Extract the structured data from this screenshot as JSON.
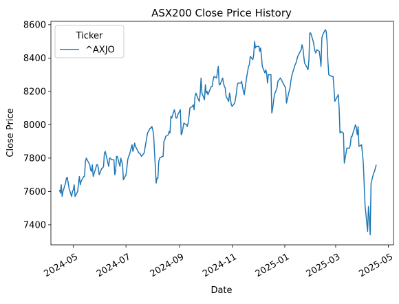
{
  "chart_data": {
    "type": "line",
    "title": "ASX200 Close Price History",
    "xlabel": "Date",
    "ylabel": "Close Price",
    "grid": false,
    "legend": {
      "title": "Ticker",
      "placement": "top-left",
      "entries": [
        "^AXJO"
      ]
    },
    "xlim": [
      "2024-04-05",
      "2025-05-07"
    ],
    "ylim": [
      7280,
      8620
    ],
    "x_ticks": [
      "2024-05-01",
      "2024-07-01",
      "2024-09-01",
      "2024-11-01",
      "2025-01-01",
      "2025-03-01",
      "2025-05-01"
    ],
    "x_tick_labels": [
      "2024-05",
      "2024-07",
      "2024-09",
      "2024-11",
      "2025-01",
      "2025-03",
      "2025-05"
    ],
    "y_ticks": [
      7400,
      7600,
      7800,
      8000,
      8200,
      8400,
      8600
    ],
    "y_tick_labels": [
      "7400",
      "7600",
      "7800",
      "8000",
      "8200",
      "8400",
      "8600"
    ],
    "series": [
      {
        "name": "^AXJO",
        "color": "#1f77b4",
        "x": [
          "2024-04-15",
          "2024-04-16",
          "2024-04-17",
          "2024-04-18",
          "2024-04-19",
          "2024-04-22",
          "2024-04-23",
          "2024-04-24",
          "2024-04-26",
          "2024-04-29",
          "2024-04-30",
          "2024-05-01",
          "2024-05-02",
          "2024-05-03",
          "2024-05-06",
          "2024-05-07",
          "2024-05-08",
          "2024-05-09",
          "2024-05-10",
          "2024-05-13",
          "2024-05-14",
          "2024-05-15",
          "2024-05-16",
          "2024-05-17",
          "2024-05-20",
          "2024-05-21",
          "2024-05-22",
          "2024-05-23",
          "2024-05-24",
          "2024-05-27",
          "2024-05-28",
          "2024-05-29",
          "2024-05-30",
          "2024-05-31",
          "2024-06-03",
          "2024-06-04",
          "2024-06-05",
          "2024-06-06",
          "2024-06-07",
          "2024-06-11",
          "2024-06-12",
          "2024-06-13",
          "2024-06-14",
          "2024-06-17",
          "2024-06-18",
          "2024-06-19",
          "2024-06-20",
          "2024-06-21",
          "2024-06-24",
          "2024-06-25",
          "2024-06-26",
          "2024-06-27",
          "2024-06-28",
          "2024-07-01",
          "2024-07-02",
          "2024-07-03",
          "2024-07-04",
          "2024-07-05",
          "2024-07-08",
          "2024-07-09",
          "2024-07-10",
          "2024-07-11",
          "2024-07-12",
          "2024-07-15",
          "2024-07-16",
          "2024-07-17",
          "2024-07-18",
          "2024-07-19",
          "2024-07-22",
          "2024-07-23",
          "2024-07-24",
          "2024-07-25",
          "2024-07-26",
          "2024-07-29",
          "2024-07-30",
          "2024-07-31",
          "2024-08-01",
          "2024-08-02",
          "2024-08-05",
          "2024-08-06",
          "2024-08-07",
          "2024-08-08",
          "2024-08-09",
          "2024-08-12",
          "2024-08-13",
          "2024-08-14",
          "2024-08-15",
          "2024-08-16",
          "2024-08-19",
          "2024-08-20",
          "2024-08-21",
          "2024-08-22",
          "2024-08-23",
          "2024-08-26",
          "2024-08-27",
          "2024-08-28",
          "2024-08-29",
          "2024-08-30",
          "2024-09-02",
          "2024-09-03",
          "2024-09-04",
          "2024-09-05",
          "2024-09-06",
          "2024-09-09",
          "2024-09-10",
          "2024-09-11",
          "2024-09-12",
          "2024-09-13",
          "2024-09-16",
          "2024-09-17",
          "2024-09-18",
          "2024-09-19",
          "2024-09-20",
          "2024-09-23",
          "2024-09-24",
          "2024-09-25",
          "2024-09-26",
          "2024-09-27",
          "2024-09-30",
          "2024-10-01",
          "2024-10-02",
          "2024-10-03",
          "2024-10-04",
          "2024-10-07",
          "2024-10-08",
          "2024-10-09",
          "2024-10-10",
          "2024-10-11",
          "2024-10-14",
          "2024-10-15",
          "2024-10-16",
          "2024-10-17",
          "2024-10-18",
          "2024-10-21",
          "2024-10-22",
          "2024-10-23",
          "2024-10-24",
          "2024-10-25",
          "2024-10-28",
          "2024-10-29",
          "2024-10-30",
          "2024-10-31",
          "2024-11-01",
          "2024-11-04",
          "2024-11-05",
          "2024-11-06",
          "2024-11-07",
          "2024-11-08",
          "2024-11-11",
          "2024-11-12",
          "2024-11-13",
          "2024-11-14",
          "2024-11-15",
          "2024-11-18",
          "2024-11-19",
          "2024-11-20",
          "2024-11-21",
          "2024-11-22",
          "2024-11-25",
          "2024-11-26",
          "2024-11-27",
          "2024-11-28",
          "2024-11-29",
          "2024-12-02",
          "2024-12-03",
          "2024-12-04",
          "2024-12-05",
          "2024-12-06",
          "2024-12-09",
          "2024-12-10",
          "2024-12-11",
          "2024-12-12",
          "2024-12-13",
          "2024-12-16",
          "2024-12-17",
          "2024-12-18",
          "2024-12-19",
          "2024-12-20",
          "2024-12-23",
          "2024-12-24",
          "2024-12-27",
          "2024-12-30",
          "2024-12-31",
          "2025-01-02",
          "2025-01-03",
          "2025-01-06",
          "2025-01-07",
          "2025-01-08",
          "2025-01-09",
          "2025-01-10",
          "2025-01-13",
          "2025-01-14",
          "2025-01-15",
          "2025-01-16",
          "2025-01-17",
          "2025-01-20",
          "2025-01-21",
          "2025-01-22",
          "2025-01-23",
          "2025-01-24",
          "2025-01-28",
          "2025-01-29",
          "2025-01-30",
          "2025-01-31",
          "2025-02-03",
          "2025-02-04",
          "2025-02-05",
          "2025-02-06",
          "2025-02-07",
          "2025-02-10",
          "2025-02-11",
          "2025-02-12",
          "2025-02-13",
          "2025-02-14",
          "2025-02-17",
          "2025-02-18",
          "2025-02-19",
          "2025-02-20",
          "2025-02-21",
          "2025-02-24",
          "2025-02-25",
          "2025-02-26",
          "2025-02-27",
          "2025-02-28",
          "2025-03-03",
          "2025-03-04",
          "2025-03-05",
          "2025-03-06",
          "2025-03-07",
          "2025-03-10",
          "2025-03-11",
          "2025-03-12",
          "2025-03-13",
          "2025-03-14",
          "2025-03-17",
          "2025-03-18",
          "2025-03-19",
          "2025-03-20",
          "2025-03-21",
          "2025-03-24",
          "2025-03-25",
          "2025-03-26",
          "2025-03-27",
          "2025-03-28",
          "2025-03-31",
          "2025-04-01",
          "2025-04-02",
          "2025-04-03",
          "2025-04-04",
          "2025-04-07",
          "2025-04-08",
          "2025-04-09",
          "2025-04-10",
          "2025-04-11",
          "2025-04-14",
          "2025-04-15",
          "2025-04-16",
          "2025-04-17"
        ],
        "values": [
          7610,
          7590,
          7640,
          7570,
          7600,
          7650,
          7680,
          7685,
          7620,
          7570,
          7600,
          7610,
          7640,
          7570,
          7600,
          7650,
          7690,
          7640,
          7660,
          7690,
          7690,
          7780,
          7800,
          7790,
          7760,
          7730,
          7720,
          7760,
          7690,
          7740,
          7760,
          7760,
          7740,
          7700,
          7740,
          7740,
          7750,
          7830,
          7840,
          7750,
          7800,
          7800,
          7790,
          7790,
          7700,
          7720,
          7810,
          7810,
          7750,
          7800,
          7780,
          7760,
          7670,
          7700,
          7740,
          7790,
          7810,
          7820,
          7880,
          7840,
          7860,
          7890,
          7870,
          7840,
          7830,
          7830,
          7820,
          7810,
          7830,
          7860,
          7890,
          7920,
          7950,
          7980,
          7980,
          7990,
          7970,
          7940,
          7650,
          7680,
          7680,
          7780,
          7800,
          7810,
          7810,
          7900,
          7910,
          7930,
          7940,
          7960,
          7950,
          8050,
          8040,
          8090,
          8070,
          8040,
          8040,
          8060,
          8090,
          7940,
          7950,
          7980,
          8010,
          8000,
          7990,
          8010,
          8050,
          8100,
          8110,
          8120,
          8090,
          8170,
          8190,
          8150,
          8140,
          8190,
          8280,
          8190,
          8150,
          8240,
          8190,
          8200,
          8180,
          8220,
          8230,
          8230,
          8270,
          8290,
          8280,
          8320,
          8350,
          8240,
          8240,
          8280,
          8250,
          8230,
          8220,
          8170,
          8140,
          8190,
          8160,
          8120,
          8110,
          8130,
          8160,
          8190,
          8240,
          8250,
          8250,
          8260,
          8230,
          8200,
          8180,
          8290,
          8320,
          8350,
          8360,
          8410,
          8390,
          8420,
          8500,
          8460,
          8470,
          8470,
          8440,
          8460,
          8410,
          8350,
          8310,
          8330,
          8310,
          8250,
          8300,
          8300,
          8070,
          8100,
          8140,
          8180,
          8220,
          8260,
          8280,
          8250,
          8240,
          8220,
          8130,
          8200,
          8220,
          8260,
          8290,
          8310,
          8360,
          8370,
          8390,
          8410,
          8420,
          8450,
          8480,
          8460,
          8410,
          8370,
          8330,
          8390,
          8550,
          8550,
          8500,
          8470,
          8440,
          8430,
          8450,
          8440,
          8400,
          8350,
          8520,
          8540,
          8570,
          8560,
          8500,
          8380,
          8300,
          8290,
          8290,
          8290,
          8220,
          8140,
          8170,
          8180,
          8100,
          7950,
          7960,
          7950,
          7770,
          7800,
          7830,
          7860,
          7860,
          7880,
          7930,
          7930,
          7950,
          8000,
          7980,
          7940,
          7990,
          7870,
          7880,
          7830,
          7770,
          7650,
          7520,
          7360,
          7510,
          7440,
          7340,
          7650,
          7710,
          7720,
          7740,
          7760
        ]
      }
    ]
  }
}
